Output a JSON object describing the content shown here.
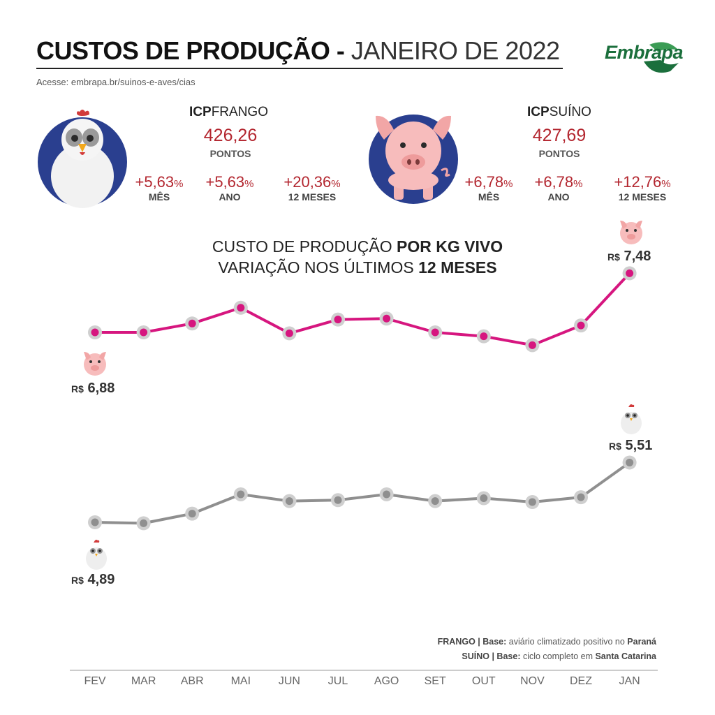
{
  "header": {
    "title_bold": "CUSTOS DE PRODUÇÃO -",
    "title_light": "JANEIRO DE 2022",
    "source": "Acesse: embrapa.br/suinos-e-aves/cias",
    "logo_text": "Embrapa"
  },
  "icp_frango": {
    "prefix": "ICP",
    "name": "FRANGO",
    "value": "426,26",
    "unit": "PONTOS",
    "variations": [
      {
        "value": "+5,63",
        "pct": "%",
        "label": "MÊS"
      },
      {
        "value": "+5,63",
        "pct": "%",
        "label": "ANO"
      },
      {
        "value": "+20,36",
        "pct": "%",
        "label": "12 MESES"
      }
    ]
  },
  "icp_suino": {
    "prefix": "ICP",
    "name": "SUÍNO",
    "value": "427,69",
    "unit": "PONTOS",
    "variations": [
      {
        "value": "+6,78",
        "pct": "%",
        "label": "MÊS"
      },
      {
        "value": "+6,78",
        "pct": "%",
        "label": "ANO"
      },
      {
        "value": "+12,76",
        "pct": "%",
        "label": "12 MESES"
      }
    ]
  },
  "chart_title": {
    "line1_normal": "CUSTO DE PRODUÇÃO ",
    "line1_bold": "POR KG VIVO",
    "line2_normal": "VARIAÇÃO NOS ÚLTIMOS ",
    "line2_bold": "12 MESES"
  },
  "labels": {
    "suino_start": {
      "currency": "R$",
      "value": "6,88"
    },
    "suino_end": {
      "currency": "R$",
      "value": "7,48"
    },
    "frango_start": {
      "currency": "R$",
      "value": "4,89"
    },
    "frango_end": {
      "currency": "R$",
      "value": "5,51"
    }
  },
  "footnotes": {
    "frango": {
      "name": "FRANGO | Base:",
      "text": " aviário climatizado positivo no ",
      "place": "Paraná"
    },
    "suino": {
      "name": "SUÍNO | Base:",
      "text": " ciclo completo em ",
      "place": "Santa Catarina"
    }
  },
  "colors": {
    "suino_line": "#d6167f",
    "frango_line": "#8f8f8f",
    "marker_halo": "#cfcfcf",
    "accent_red": "#b3262f",
    "circle_blue": "#2a3f8f"
  },
  "chart_data": {
    "type": "line",
    "categories": [
      "FEV",
      "MAR",
      "ABR",
      "MAI",
      "JUN",
      "JUL",
      "AGO",
      "SET",
      "OUT",
      "NOV",
      "DEZ",
      "JAN"
    ],
    "series": [
      {
        "name": "SUÍNO",
        "values": [
          6.88,
          6.88,
          6.97,
          7.13,
          6.87,
          7.01,
          7.02,
          6.88,
          6.84,
          6.75,
          6.95,
          7.48
        ]
      },
      {
        "name": "FRANGO",
        "values": [
          4.89,
          4.88,
          4.98,
          5.18,
          5.11,
          5.12,
          5.18,
          5.11,
          5.14,
          5.1,
          5.15,
          5.51
        ]
      }
    ]
  }
}
